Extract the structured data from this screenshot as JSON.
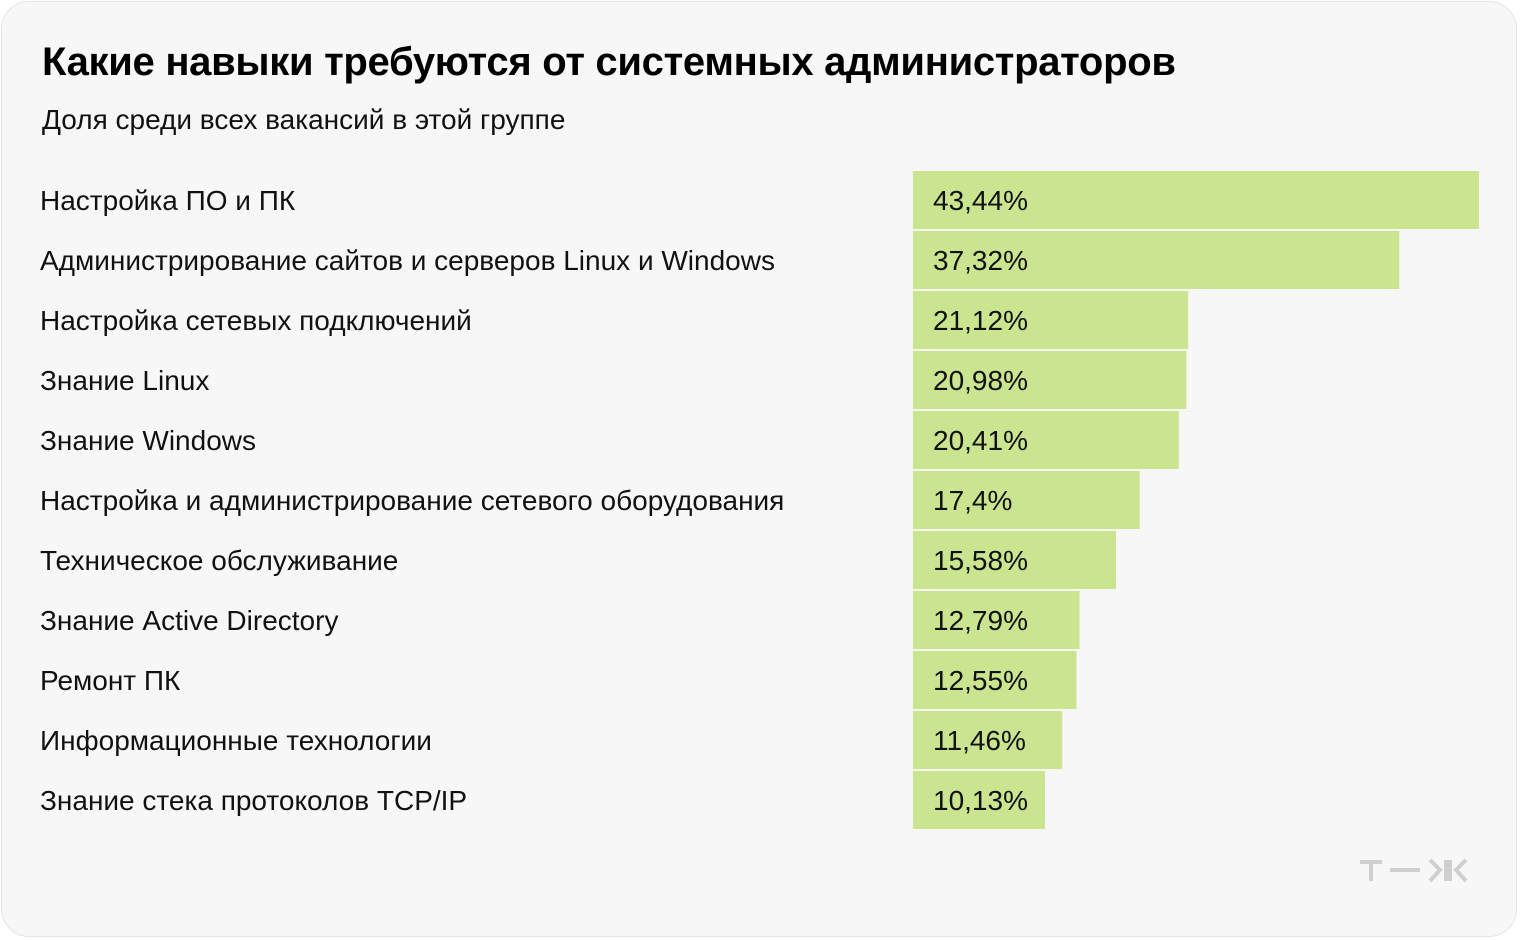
{
  "title": "Какие навыки требуются от системных администраторов",
  "subtitle": "Доля среди всех вакансий в этой группе",
  "logo_text": "Т—Ж",
  "colors": {
    "background": "#f7f7f7",
    "bar": "#cbe48f",
    "text": "#000000",
    "logo": "#cfcfcf"
  },
  "chart_data": {
    "type": "bar",
    "orientation": "horizontal",
    "title": "Какие навыки требуются от системных администраторов",
    "subtitle": "Доля среди всех вакансий в этой группе",
    "categories": [
      "Настройка ПО и ПК",
      "Администрирование сайтов и серверов Linux и Windows",
      "Настройка сетевых подключений",
      "Знание Linux",
      "Знание Windows",
      "Настройка и администрирование сетевого оборудования",
      "Техническое обслуживание",
      "Знание Active Directory",
      "Ремонт ПК",
      "Информационные технологии",
      "Знание стека протоколов TCP/IP"
    ],
    "values": [
      43.44,
      37.32,
      21.12,
      20.98,
      20.41,
      17.4,
      15.58,
      12.79,
      12.55,
      11.46,
      10.13
    ],
    "value_labels": [
      "43,44%",
      "37,32%",
      "21,12%",
      "20,98%",
      "20,41%",
      "17,4%",
      "15,58%",
      "12,79%",
      "12,55%",
      "11,46%",
      "10,13%"
    ],
    "unit": "%",
    "xlim": [
      0,
      43.44
    ],
    "grid": false,
    "legend": "none"
  }
}
